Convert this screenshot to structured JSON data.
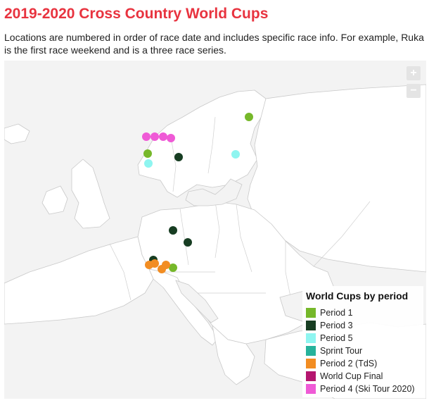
{
  "title": "2019-2020 Cross Country World Cups",
  "description": "Locations are numbered in order of race date and includes specific race info. For example, Ruka is the first race weekend and is a three race series.",
  "zoom": {
    "in_label": "+",
    "out_label": "−"
  },
  "legend": {
    "title": "World Cups by period",
    "items": [
      {
        "label": "Period 1",
        "color": "#76b82a"
      },
      {
        "label": "Period 3",
        "color": "#173d22"
      },
      {
        "label": "Period 5",
        "color": "#8ef5f0"
      },
      {
        "label": "Sprint Tour",
        "color": "#26b29b"
      },
      {
        "label": "Period 2 (TdS)",
        "color": "#f28d22"
      },
      {
        "label": "World Cup Final",
        "color": "#b5166f"
      },
      {
        "label": "Period 4 (Ski Tour 2020)",
        "color": "#ef5ad6"
      }
    ]
  },
  "locations": [
    {
      "period": "Period 1",
      "color": "#76b82a"
    },
    {
      "period": "Period 1",
      "color": "#76b82a"
    },
    {
      "period": "Period 1",
      "color": "#76b82a"
    },
    {
      "period": "Period 3",
      "color": "#173d22"
    },
    {
      "period": "Period 3",
      "color": "#173d22"
    },
    {
      "period": "Period 3",
      "color": "#173d22"
    },
    {
      "period": "Period 3",
      "color": "#173d22"
    },
    {
      "period": "Period 5",
      "color": "#8ef5f0"
    },
    {
      "period": "Period 5",
      "color": "#8ef5f0"
    },
    {
      "period": "Period 4 (Ski Tour 2020)",
      "color": "#ef5ad6"
    },
    {
      "period": "Period 4 (Ski Tour 2020)",
      "color": "#ef5ad6"
    },
    {
      "period": "Period 4 (Ski Tour 2020)",
      "color": "#ef5ad6"
    },
    {
      "period": "Period 4 (Ski Tour 2020)",
      "color": "#ef5ad6"
    },
    {
      "period": "Period 2 (TdS)",
      "color": "#f28d22"
    },
    {
      "period": "Period 2 (TdS)",
      "color": "#f28d22"
    },
    {
      "period": "Period 2 (TdS)",
      "color": "#f28d22"
    },
    {
      "period": "Period 2 (TdS)",
      "color": "#f28d22"
    }
  ]
}
